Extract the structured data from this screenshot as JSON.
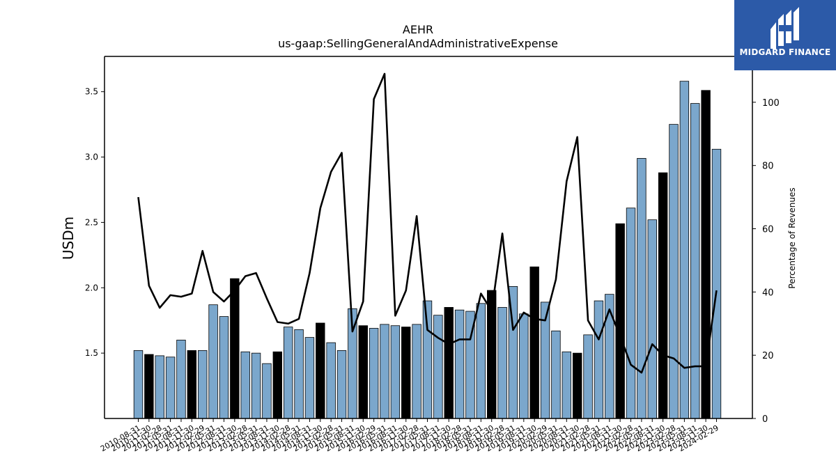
{
  "header": {
    "title": "AEHR",
    "subtitle": "us-gaap:SellingGeneralAndAdministrativeExpense"
  },
  "logo": {
    "text": "MIDGARD FINANCE",
    "icon": "midgard-logo-icon",
    "background": "#2c5aa8"
  },
  "chart_data": {
    "type": "bar",
    "title": "AEHR",
    "subtitle": "us-gaap:SellingGeneralAndAdministrativeExpense",
    "ylabel": "USDm",
    "y2label": "Percentage of Revenues",
    "ylim": [
      1.0,
      3.77
    ],
    "y2lim": [
      0,
      114.5
    ],
    "yticks": [
      "1.5",
      "2.0",
      "2.5",
      "3.0",
      "3.5"
    ],
    "y2ticks": [
      "0",
      "20",
      "40",
      "60",
      "80",
      "100"
    ],
    "grid": false,
    "categories": [
      "2010-08-31",
      "2010-11-30",
      "2011-02-28",
      "2011-05-31",
      "2011-08-31",
      "2011-11-30",
      "2012-02-29",
      "2012-05-31",
      "2012-08-31",
      "2012-11-30",
      "2013-02-28",
      "2013-05-31",
      "2013-08-31",
      "2013-11-30",
      "2014-02-28",
      "2014-05-31",
      "2014-08-31",
      "2014-11-30",
      "2015-02-28",
      "2015-05-31",
      "2015-08-31",
      "2015-11-30",
      "2016-02-29",
      "2016-05-31",
      "2016-08-31",
      "2016-11-30",
      "2017-02-28",
      "2017-05-31",
      "2017-08-31",
      "2017-11-30",
      "2018-02-28",
      "2018-05-31",
      "2018-08-31",
      "2018-11-30",
      "2019-02-28",
      "2019-05-31",
      "2019-08-31",
      "2019-11-30",
      "2020-02-29",
      "2020-05-31",
      "2020-08-31",
      "2020-11-30",
      "2021-02-28",
      "2021-05-31",
      "2021-08-31",
      "2021-11-30",
      "2022-02-28",
      "2022-05-31",
      "2022-08-31",
      "2022-11-30",
      "2023-02-28",
      "2023-05-31",
      "2023-08-31",
      "2023-11-30",
      "2024-02-29"
    ],
    "series": [
      {
        "type": "bar",
        "values": [
          1.52,
          1.49,
          1.48,
          1.47,
          1.6,
          1.52,
          1.52,
          1.87,
          1.78,
          2.07,
          1.51,
          1.5,
          1.42,
          1.51,
          1.7,
          1.68,
          1.62,
          1.73,
          1.58,
          1.52,
          1.84,
          1.71,
          1.69,
          1.72,
          1.71,
          1.7,
          1.72,
          1.9,
          1.79,
          1.85,
          1.83,
          1.82,
          1.88,
          1.98,
          1.85,
          2.01,
          1.8,
          2.16,
          1.89,
          1.67,
          1.51,
          1.5,
          1.64,
          1.9,
          1.95,
          2.49,
          2.61,
          2.99,
          2.52,
          2.88,
          3.25,
          3.58,
          3.41,
          3.51,
          3.06
        ],
        "highlight": [
          false,
          true,
          false,
          false,
          false,
          true,
          false,
          false,
          false,
          true,
          false,
          false,
          false,
          true,
          false,
          false,
          false,
          true,
          false,
          false,
          false,
          true,
          false,
          false,
          false,
          true,
          false,
          false,
          false,
          true,
          false,
          false,
          false,
          true,
          false,
          false,
          false,
          true,
          false,
          false,
          false,
          true,
          false,
          false,
          false,
          true,
          false,
          false,
          false,
          true,
          false,
          false,
          false,
          true,
          false
        ],
        "color": "#7ba7cc",
        "highlight_color": "#000000"
      },
      {
        "type": "line",
        "axis": "right",
        "values": [
          70,
          42,
          35,
          39,
          38.5,
          39.5,
          53,
          40,
          37,
          40.5,
          45,
          46,
          38,
          30.5,
          30,
          31.5,
          46,
          66.5,
          78,
          84,
          27.5,
          37,
          101,
          109,
          32.5,
          40.5,
          64,
          28,
          25.5,
          23.5,
          25,
          25,
          39.5,
          34,
          58.5,
          28,
          33.5,
          31.5,
          31,
          44,
          75,
          89,
          31,
          25,
          34.5,
          26,
          17,
          14.5,
          23.5,
          20,
          19,
          16,
          16.5,
          16.5,
          40.5
        ],
        "color": "#000000"
      }
    ]
  }
}
